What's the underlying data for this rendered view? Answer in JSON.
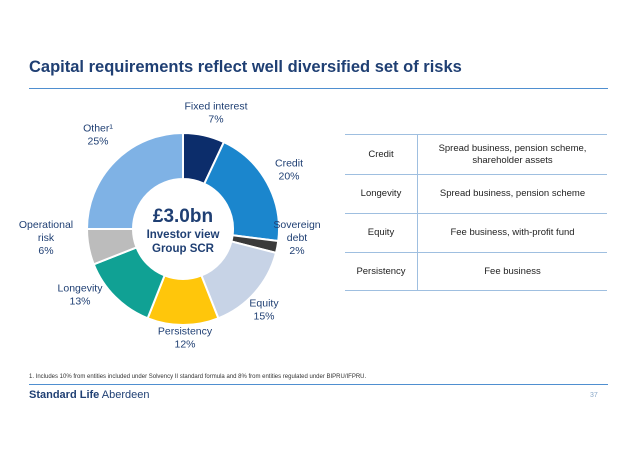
{
  "page": {
    "title": "Capital requirements reflect well diversified set of risks",
    "footnote": "1. Includes 10% from entities included under Solvency II standard formula and 8% from entities regulated under BIPRU/IFPRU.",
    "page_number": "37",
    "logo": {
      "part1": "Standard Life",
      "part2": "Aberdeen"
    }
  },
  "chart_data": {
    "type": "pie",
    "center_text": {
      "main": "£3.0bn",
      "sub1": "Investor view",
      "sub2": "Group SCR"
    },
    "slices": [
      {
        "label": "Fixed interest",
        "value": 7,
        "value_label": "7%",
        "color": "#0c2d6b"
      },
      {
        "label": "Credit",
        "value": 20,
        "value_label": "20%",
        "color": "#1b86cd"
      },
      {
        "label": "Sovereign debt",
        "value": 2,
        "value_label": "2%",
        "color": "#3a3a3a"
      },
      {
        "label": "Equity",
        "value": 15,
        "value_label": "15%",
        "color": "#c7d3e6"
      },
      {
        "label": "Persistency",
        "value": 12,
        "value_label": "12%",
        "color": "#ffc60b"
      },
      {
        "label": "Longevity",
        "value": 13,
        "value_label": "13%",
        "color": "#10a194"
      },
      {
        "label": "Operational risk",
        "value": 6,
        "value_label": "6%",
        "color": "#bcbcbc"
      },
      {
        "label": "Other¹",
        "value": 25,
        "value_label": "25%",
        "color": "#7fb2e5"
      }
    ]
  },
  "table": {
    "rows": [
      {
        "risk": "Credit",
        "sources": "Spread business, pension scheme, shareholder assets"
      },
      {
        "risk": "Longevity",
        "sources": "Spread business, pension scheme"
      },
      {
        "risk": "Equity",
        "sources": "Fee business, with-profit fund"
      },
      {
        "risk": "Persistency",
        "sources": "Fee business"
      }
    ]
  }
}
